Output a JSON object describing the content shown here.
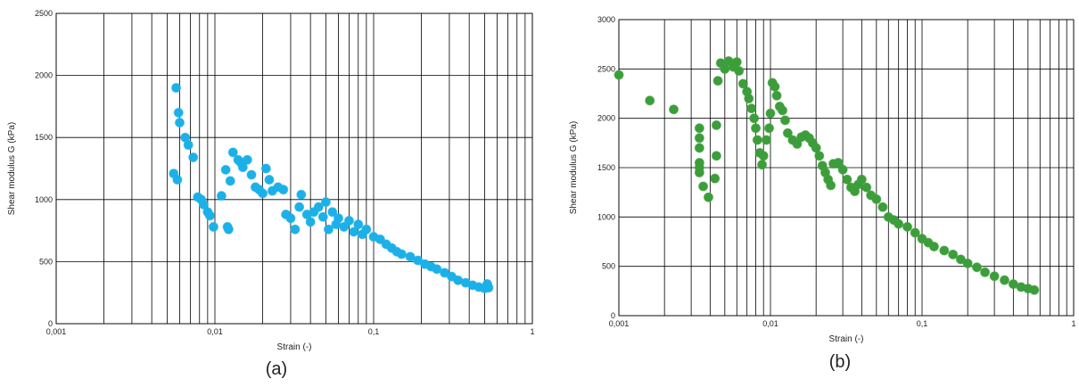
{
  "chart_data": [
    {
      "type": "scatter",
      "caption": "(a)",
      "xlabel": "Strain (-)",
      "ylabel": "Shear modulus G (kPa)",
      "xscale": "log",
      "grid": true,
      "minor_grid": true,
      "color": "#1cb0e8",
      "xlim": [
        0.001,
        1
      ],
      "xticks": [
        {
          "value": 0.001,
          "label": "0,001"
        },
        {
          "value": 0.01,
          "label": "0,01"
        },
        {
          "value": 0.1,
          "label": "0,1"
        },
        1
      ],
      "ylim": [
        0,
        2500
      ],
      "yticks": [
        0,
        500,
        1000,
        1500,
        2000,
        2500
      ],
      "x": [
        0.0057,
        0.0059,
        0.006,
        0.0065,
        0.0068,
        0.0073,
        0.0055,
        0.0058,
        0.0078,
        0.0082,
        0.0085,
        0.009,
        0.0093,
        0.0098,
        0.011,
        0.0117,
        0.012,
        0.0122,
        0.0125,
        0.013,
        0.014,
        0.0145,
        0.015,
        0.016,
        0.017,
        0.018,
        0.019,
        0.02,
        0.021,
        0.022,
        0.023,
        0.025,
        0.027,
        0.028,
        0.03,
        0.032,
        0.034,
        0.035,
        0.038,
        0.04,
        0.042,
        0.045,
        0.048,
        0.05,
        0.052,
        0.055,
        0.058,
        0.06,
        0.065,
        0.07,
        0.075,
        0.08,
        0.085,
        0.09,
        0.1,
        0.11,
        0.12,
        0.13,
        0.14,
        0.15,
        0.17,
        0.19,
        0.21,
        0.23,
        0.25,
        0.28,
        0.31,
        0.34,
        0.38,
        0.42,
        0.46,
        0.5,
        0.52,
        0.53
      ],
      "values": [
        1900,
        1700,
        1620,
        1500,
        1440,
        1340,
        1210,
        1160,
        1020,
        1000,
        960,
        900,
        870,
        780,
        1030,
        1240,
        780,
        760,
        1150,
        1380,
        1320,
        1300,
        1260,
        1320,
        1200,
        1100,
        1080,
        1050,
        1250,
        1160,
        1070,
        1100,
        1080,
        880,
        850,
        760,
        940,
        1040,
        880,
        820,
        900,
        940,
        860,
        980,
        760,
        900,
        800,
        850,
        780,
        830,
        740,
        800,
        720,
        760,
        700,
        680,
        640,
        610,
        580,
        560,
        540,
        510,
        480,
        460,
        440,
        410,
        380,
        350,
        330,
        310,
        295,
        285,
        320,
        290
      ]
    },
    {
      "type": "scatter",
      "caption": "(b)",
      "xlabel": "Strain (-)",
      "ylabel": "Shear modulus G (kPa)",
      "xscale": "log",
      "grid": true,
      "minor_grid": true,
      "color": "#3c9e3a",
      "xlim": [
        0.001,
        1
      ],
      "xticks": [
        {
          "value": 0.001,
          "label": "0,001"
        },
        {
          "value": 0.01,
          "label": "0,01"
        },
        {
          "value": 0.1,
          "label": "0,1"
        },
        1
      ],
      "ylim": [
        0,
        3000
      ],
      "yticks": [
        0,
        500,
        1000,
        1500,
        2000,
        2500,
        3000
      ],
      "x": [
        0.001,
        0.0016,
        0.0023,
        0.0034,
        0.0034,
        0.0034,
        0.0034,
        0.0034,
        0.0034,
        0.0036,
        0.0039,
        0.0043,
        0.0044,
        0.0044,
        0.0045,
        0.0047,
        0.005,
        0.0053,
        0.0057,
        0.006,
        0.0062,
        0.0066,
        0.007,
        0.0072,
        0.0075,
        0.0078,
        0.008,
        0.0082,
        0.0085,
        0.0088,
        0.009,
        0.0094,
        0.0098,
        0.01,
        0.0103,
        0.0107,
        0.011,
        0.0115,
        0.012,
        0.0125,
        0.013,
        0.014,
        0.015,
        0.016,
        0.017,
        0.018,
        0.019,
        0.02,
        0.021,
        0.022,
        0.023,
        0.024,
        0.025,
        0.026,
        0.028,
        0.03,
        0.032,
        0.034,
        0.036,
        0.038,
        0.04,
        0.043,
        0.046,
        0.05,
        0.055,
        0.06,
        0.065,
        0.07,
        0.08,
        0.09,
        0.1,
        0.11,
        0.12,
        0.14,
        0.16,
        0.18,
        0.2,
        0.23,
        0.26,
        0.3,
        0.35,
        0.4,
        0.45,
        0.5,
        0.55
      ],
      "values": [
        2440,
        2180,
        2090,
        1900,
        1800,
        1700,
        1550,
        1500,
        1450,
        1310,
        1200,
        1390,
        1620,
        1930,
        2380,
        2560,
        2500,
        2580,
        2520,
        2570,
        2480,
        2350,
        2270,
        2200,
        2100,
        2000,
        1900,
        1780,
        1650,
        1530,
        1620,
        1780,
        1900,
        2050,
        2360,
        2320,
        2230,
        2120,
        2080,
        1980,
        1850,
        1780,
        1740,
        1810,
        1830,
        1800,
        1750,
        1700,
        1620,
        1520,
        1450,
        1380,
        1320,
        1540,
        1550,
        1480,
        1380,
        1300,
        1260,
        1330,
        1380,
        1300,
        1220,
        1180,
        1100,
        1000,
        970,
        930,
        900,
        840,
        780,
        740,
        700,
        660,
        620,
        570,
        530,
        490,
        440,
        400,
        360,
        320,
        290,
        275,
        260
      ]
    }
  ]
}
